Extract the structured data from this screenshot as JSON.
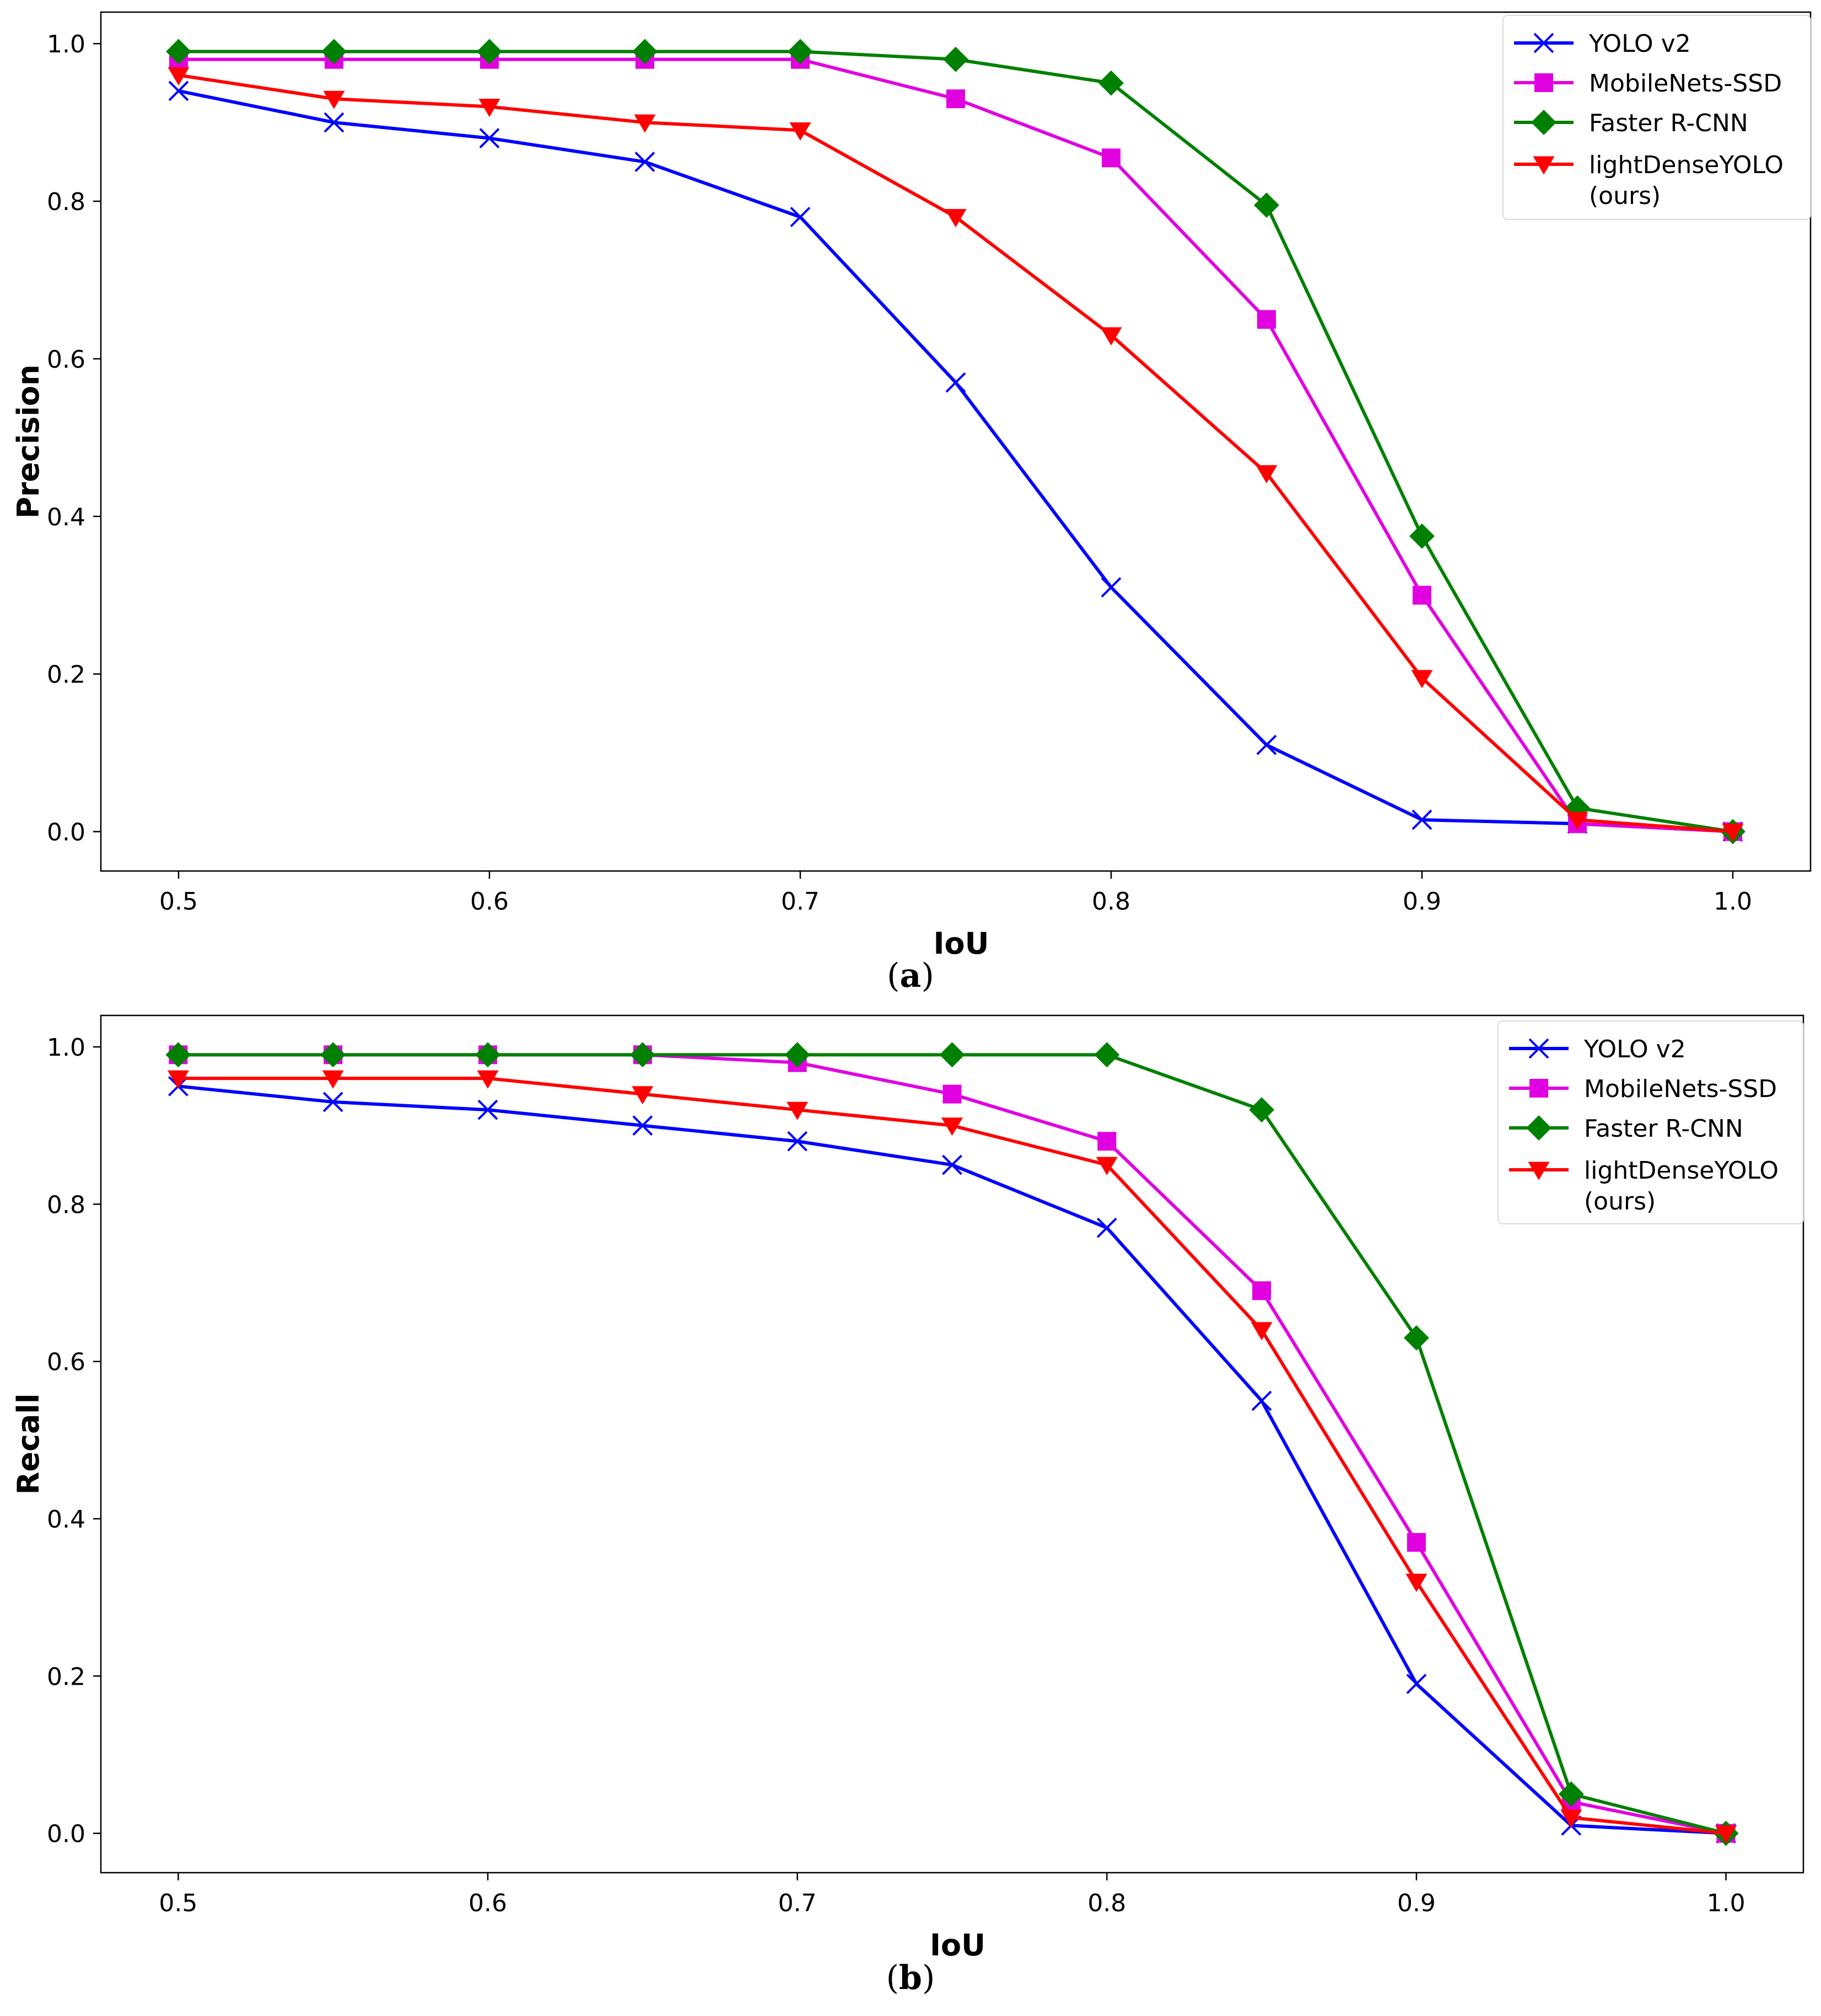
{
  "chart_data": [
    {
      "type": "line",
      "caption_letter": "a",
      "xlabel": "IoU",
      "ylabel": "Precision",
      "xlim": [
        0.475,
        1.025
      ],
      "ylim": [
        -0.05,
        1.04
      ],
      "x": [
        0.5,
        0.55,
        0.6,
        0.65,
        0.7,
        0.75,
        0.8,
        0.85,
        0.9,
        0.95,
        1.0
      ],
      "xticks": [
        "0.5",
        "0.6",
        "0.7",
        "0.8",
        "0.9",
        "1.0"
      ],
      "xtick_values": [
        0.5,
        0.6,
        0.7,
        0.8,
        0.9,
        1.0
      ],
      "yticks": [
        "0.0",
        "0.2",
        "0.4",
        "0.6",
        "0.8",
        "1.0"
      ],
      "ytick_values": [
        0.0,
        0.2,
        0.4,
        0.6,
        0.8,
        1.0
      ],
      "legend_position": "top-right",
      "grid": false,
      "series": [
        {
          "name": "YOLO v2",
          "color": "#0000ff",
          "marker": "x",
          "values": [
            0.94,
            0.9,
            0.88,
            0.85,
            0.78,
            0.57,
            0.31,
            0.11,
            0.015,
            0.01,
            0.0
          ]
        },
        {
          "name": "MobileNets-SSD",
          "color": "#e000e0",
          "marker": "square",
          "values": [
            0.98,
            0.98,
            0.98,
            0.98,
            0.98,
            0.93,
            0.855,
            0.65,
            0.3,
            0.01,
            0.0
          ]
        },
        {
          "name": "Faster R-CNN",
          "color": "#008000",
          "marker": "diamond",
          "values": [
            0.99,
            0.99,
            0.99,
            0.99,
            0.99,
            0.98,
            0.95,
            0.795,
            0.375,
            0.03,
            0.0
          ]
        },
        {
          "name": "lightDenseYOLO",
          "name_line2": "(ours)",
          "color": "#ff0000",
          "marker": "triangle-down",
          "values": [
            0.96,
            0.93,
            0.92,
            0.9,
            0.89,
            0.78,
            0.63,
            0.455,
            0.195,
            0.015,
            0.0
          ]
        }
      ]
    },
    {
      "type": "line",
      "caption_letter": "b",
      "xlabel": "IoU",
      "ylabel": "Recall",
      "xlim": [
        0.475,
        1.025
      ],
      "ylim": [
        -0.05,
        1.04
      ],
      "x": [
        0.5,
        0.55,
        0.6,
        0.65,
        0.7,
        0.75,
        0.8,
        0.85,
        0.9,
        0.95,
        1.0
      ],
      "xticks": [
        "0.5",
        "0.6",
        "0.7",
        "0.8",
        "0.9",
        "1.0"
      ],
      "xtick_values": [
        0.5,
        0.6,
        0.7,
        0.8,
        0.9,
        1.0
      ],
      "yticks": [
        "0.0",
        "0.2",
        "0.4",
        "0.6",
        "0.8",
        "1.0"
      ],
      "ytick_values": [
        0.0,
        0.2,
        0.4,
        0.6,
        0.8,
        1.0
      ],
      "legend_position": "top-right",
      "grid": false,
      "series": [
        {
          "name": "YOLO v2",
          "color": "#0000ff",
          "marker": "x",
          "values": [
            0.95,
            0.93,
            0.92,
            0.9,
            0.88,
            0.85,
            0.77,
            0.55,
            0.19,
            0.01,
            0.0
          ]
        },
        {
          "name": "MobileNets-SSD",
          "color": "#e000e0",
          "marker": "square",
          "values": [
            0.99,
            0.99,
            0.99,
            0.99,
            0.98,
            0.94,
            0.88,
            0.69,
            0.37,
            0.04,
            0.0
          ]
        },
        {
          "name": "Faster R-CNN",
          "color": "#008000",
          "marker": "diamond",
          "values": [
            0.99,
            0.99,
            0.99,
            0.99,
            0.99,
            0.99,
            0.99,
            0.92,
            0.63,
            0.05,
            0.0
          ]
        },
        {
          "name": "lightDenseYOLO",
          "name_line2": "(ours)",
          "color": "#ff0000",
          "marker": "triangle-down",
          "values": [
            0.96,
            0.96,
            0.96,
            0.94,
            0.92,
            0.9,
            0.85,
            0.64,
            0.32,
            0.02,
            0.0
          ]
        }
      ]
    }
  ]
}
